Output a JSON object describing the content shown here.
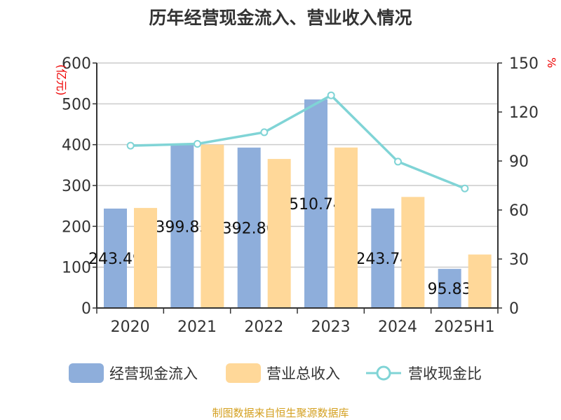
{
  "title": "历年经营现金流入、营业收入情况",
  "source": "制图数据来自恒生聚源数据库",
  "chart_data": {
    "type": "bar+line",
    "title": "历年经营现金流入、营业收入情况",
    "categories": [
      "2020",
      "2021",
      "2022",
      "2023",
      "2024",
      "2025H1"
    ],
    "left_axis": {
      "label": "(亿元)",
      "range": [
        0,
        600
      ],
      "ticks": [
        0,
        100,
        200,
        300,
        400,
        500,
        600
      ]
    },
    "right_axis": {
      "label": "%",
      "range": [
        0,
        150
      ],
      "ticks": [
        0,
        30,
        60,
        90,
        120,
        150
      ]
    },
    "grid": true,
    "legend_position": "bottom",
    "series": [
      {
        "name": "经营现金流入",
        "type": "bar",
        "axis": "left",
        "color": "#8eaedb",
        "values": [
          243.49,
          399.85,
          392.86,
          510.74,
          243.74,
          95.83
        ],
        "labels": [
          "243.49",
          "399.85",
          "392.86",
          "510.74",
          "243.74",
          "95.83"
        ]
      },
      {
        "name": "营业总收入",
        "type": "bar",
        "axis": "left",
        "color": "#ffd899",
        "values": [
          245,
          400,
          365,
          393,
          272,
          131
        ]
      },
      {
        "name": "营收现金比",
        "type": "line",
        "axis": "right",
        "color": "#80d4d6",
        "values": [
          99.4,
          100.5,
          107.6,
          130.2,
          89.6,
          73.2
        ]
      }
    ]
  }
}
